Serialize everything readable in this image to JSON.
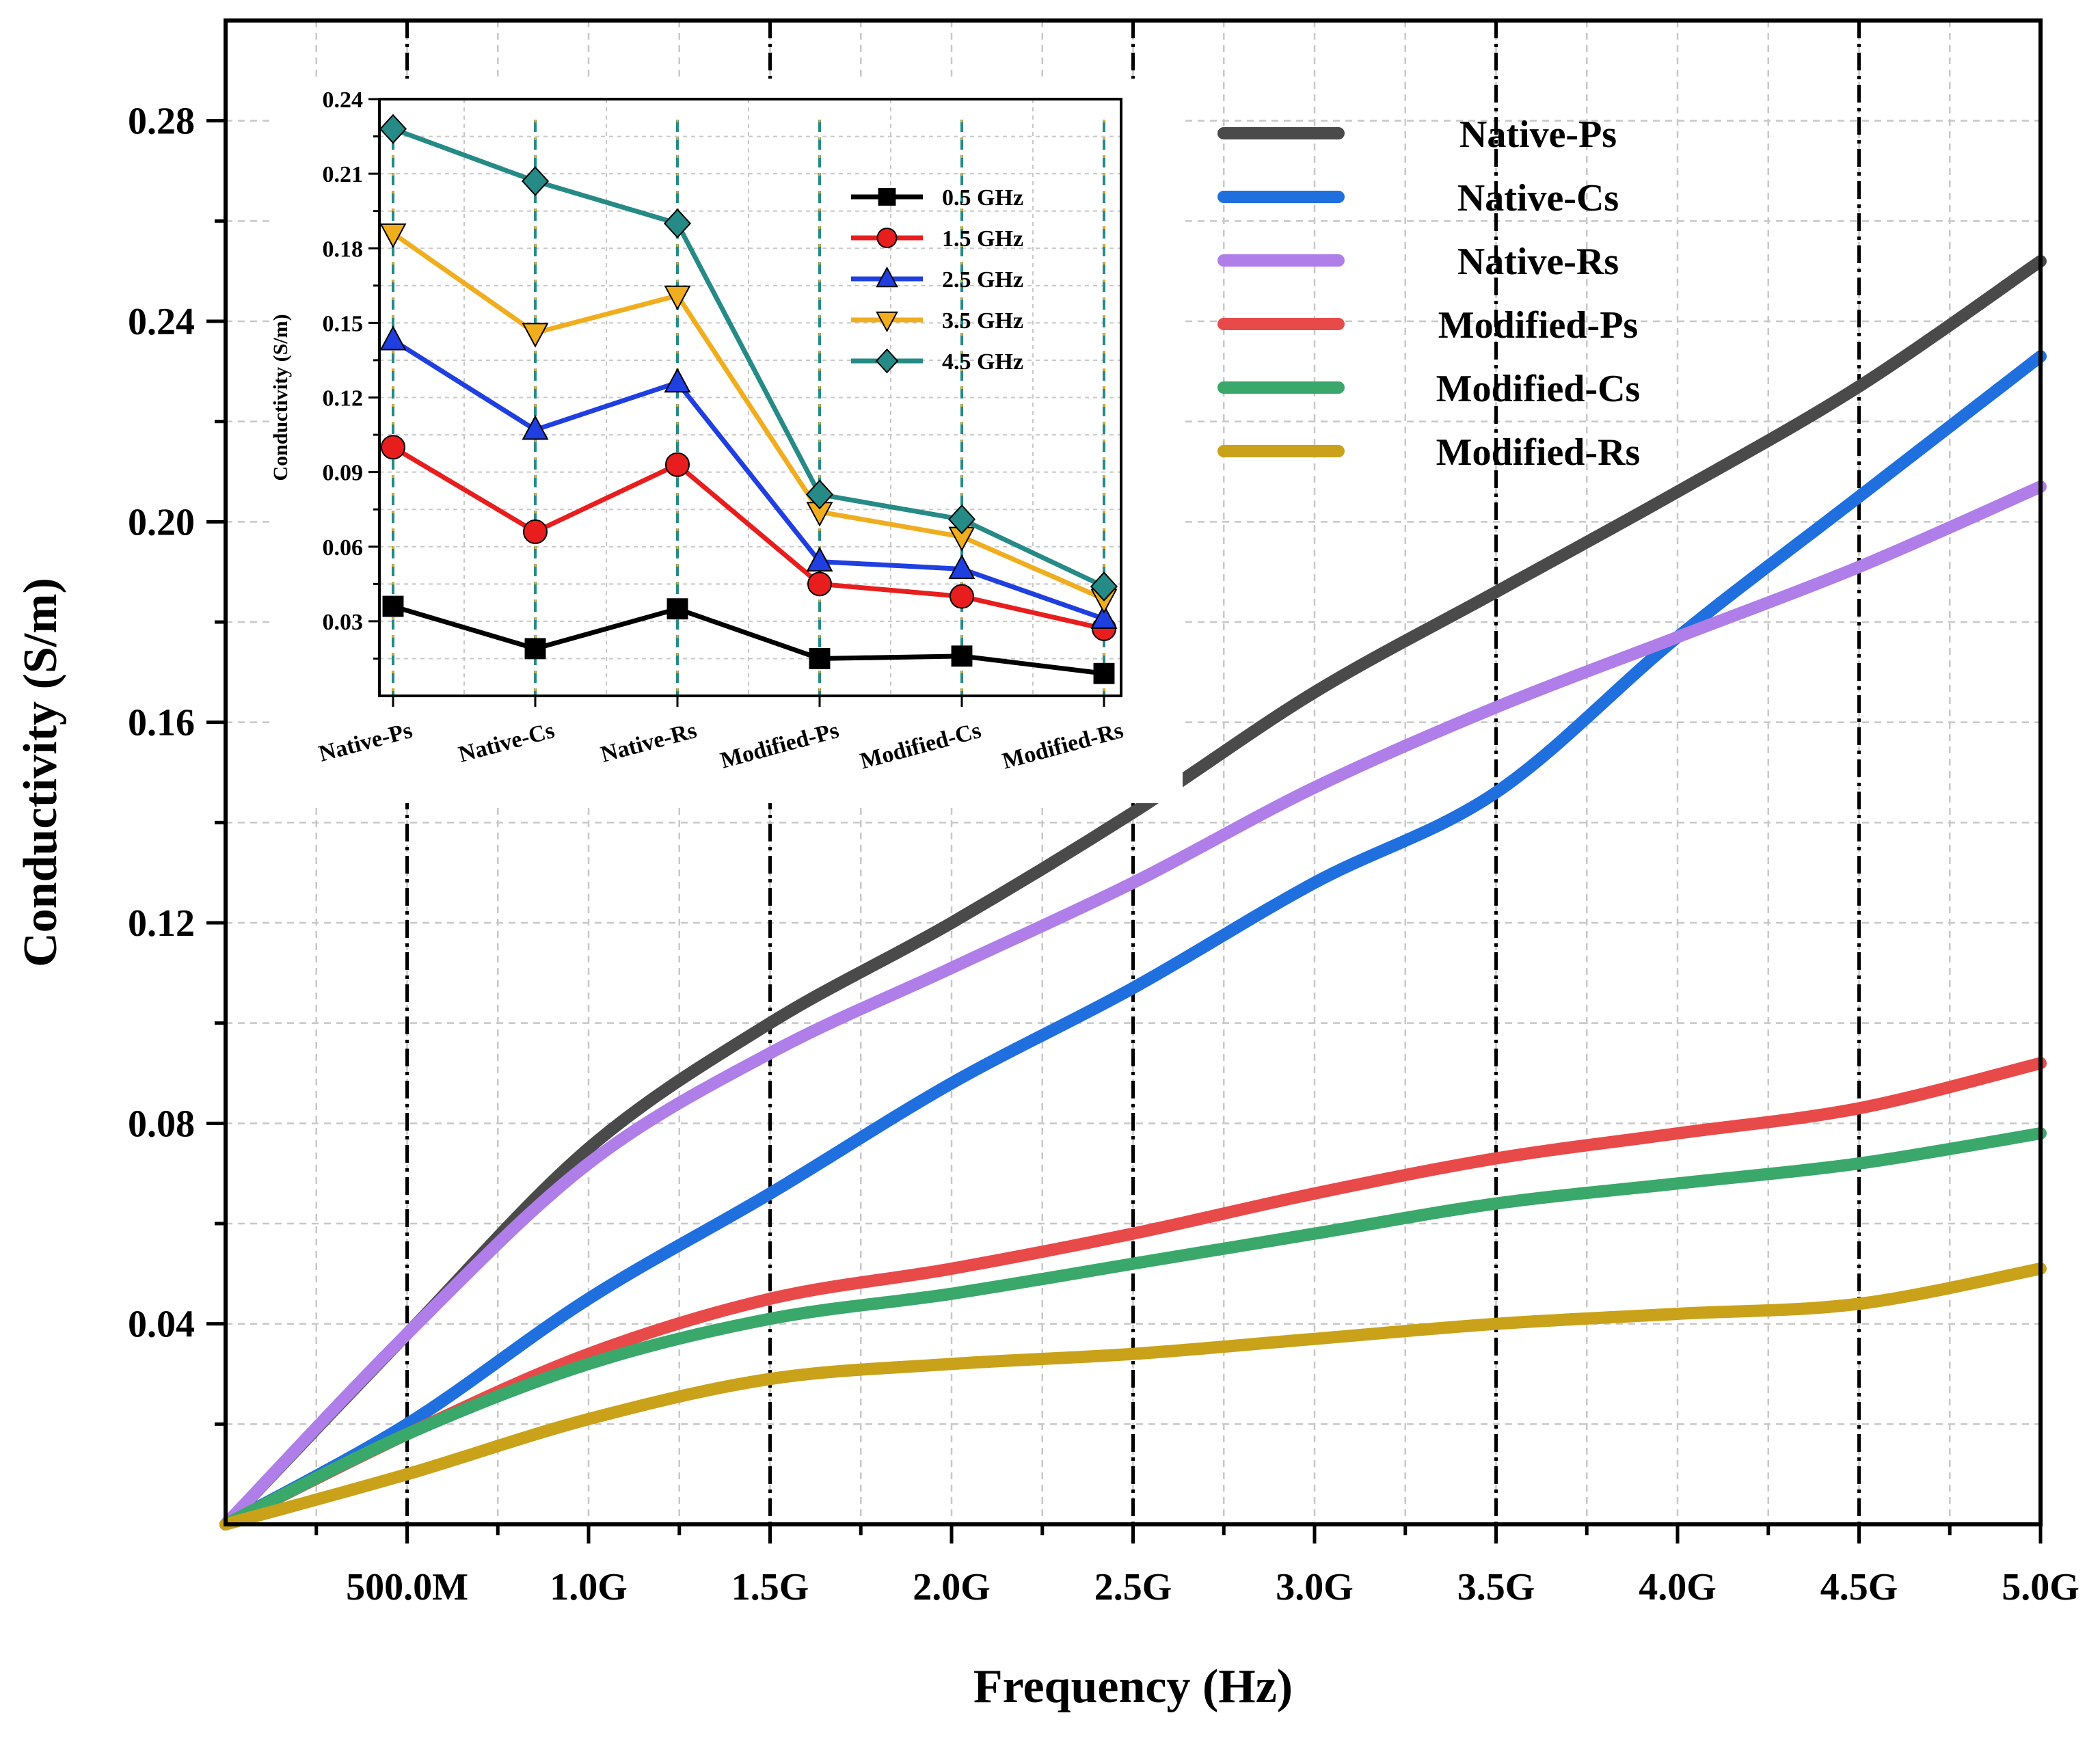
{
  "chart_data": [
    {
      "type": "line",
      "name": "main",
      "xlabel": "Frequency (Hz)",
      "ylabel": "Conductivity (S/m)",
      "xlim": [
        0.0,
        5.0
      ],
      "ylim": [
        0.0,
        0.3
      ],
      "x_unit": "GHz",
      "x_ticks": [
        {
          "value": 0.5,
          "label": "500.0M"
        },
        {
          "value": 1.0,
          "label": "1.0G"
        },
        {
          "value": 1.5,
          "label": "1.5G"
        },
        {
          "value": 2.0,
          "label": "2.0G"
        },
        {
          "value": 2.5,
          "label": "2.5G"
        },
        {
          "value": 3.0,
          "label": "3.0G"
        },
        {
          "value": 3.5,
          "label": "3.5G"
        },
        {
          "value": 4.0,
          "label": "4.0G"
        },
        {
          "value": 4.5,
          "label": "4.5G"
        },
        {
          "value": 5.0,
          "label": "5.0G"
        }
      ],
      "y_ticks": [
        {
          "value": 0.04,
          "label": "0.04"
        },
        {
          "value": 0.08,
          "label": "0.08"
        },
        {
          "value": 0.12,
          "label": "0.12"
        },
        {
          "value": 0.16,
          "label": "0.16"
        },
        {
          "value": 0.2,
          "label": "0.20"
        },
        {
          "value": 0.24,
          "label": "0.24"
        },
        {
          "value": 0.28,
          "label": "0.28"
        }
      ],
      "grid": true,
      "reference_lines_x": [
        0.5,
        1.5,
        2.5,
        3.5,
        4.5
      ],
      "legend_position": "top-right",
      "x": [
        0.0,
        0.5,
        1.0,
        1.5,
        2.0,
        2.5,
        3.0,
        3.5,
        4.0,
        4.5,
        5.0
      ],
      "series": [
        {
          "name": "Native-Ps",
          "color": "#4a4a4a",
          "values": [
            0.0,
            0.038,
            0.075,
            0.1,
            0.12,
            0.142,
            0.166,
            0.186,
            0.206,
            0.227,
            0.252
          ]
        },
        {
          "name": "Native-Cs",
          "color": "#1f6fde",
          "values": [
            0.0,
            0.02,
            0.045,
            0.066,
            0.088,
            0.107,
            0.128,
            0.146,
            0.177,
            0.205,
            0.233
          ]
        },
        {
          "name": "Native-Rs",
          "color": "#b07ee8",
          "values": [
            0.0,
            0.038,
            0.072,
            0.094,
            0.111,
            0.128,
            0.147,
            0.163,
            0.177,
            0.191,
            0.207
          ]
        },
        {
          "name": "Modified-Ps",
          "color": "#e84a4a",
          "values": [
            0.0,
            0.018,
            0.034,
            0.045,
            0.051,
            0.058,
            0.066,
            0.073,
            0.078,
            0.083,
            0.092
          ]
        },
        {
          "name": "Modified-Cs",
          "color": "#3aa86a",
          "values": [
            0.0,
            0.018,
            0.032,
            0.041,
            0.046,
            0.052,
            0.058,
            0.064,
            0.068,
            0.072,
            0.078
          ]
        },
        {
          "name": "Modified-Rs",
          "color": "#c9a21a",
          "values": [
            0.0,
            0.01,
            0.021,
            0.029,
            0.032,
            0.034,
            0.037,
            0.04,
            0.042,
            0.044,
            0.051
          ]
        }
      ]
    },
    {
      "type": "line",
      "name": "inset",
      "ylabel": "Conductivity (S/m)",
      "ylim": [
        0.0,
        0.24
      ],
      "y_ticks": [
        {
          "value": 0.03,
          "label": "0.03"
        },
        {
          "value": 0.06,
          "label": "0.06"
        },
        {
          "value": 0.09,
          "label": "0.09"
        },
        {
          "value": 0.12,
          "label": "0.12"
        },
        {
          "value": 0.15,
          "label": "0.15"
        },
        {
          "value": 0.18,
          "label": "0.18"
        },
        {
          "value": 0.21,
          "label": "0.21"
        },
        {
          "value": 0.24,
          "label": "0.24"
        }
      ],
      "categories": [
        "Native-Ps",
        "Native-Cs",
        "Native-Rs",
        "Modified-Ps",
        "Modified-Cs",
        "Modified-Rs"
      ],
      "legend_position": "top-right",
      "series": [
        {
          "name": "0.5 GHz",
          "color": "#000000",
          "marker": "square",
          "values": [
            0.036,
            0.019,
            0.035,
            0.015,
            0.016,
            0.009
          ]
        },
        {
          "name": "1.5 GHz",
          "color": "#e81e1e",
          "marker": "circle",
          "values": [
            0.1,
            0.066,
            0.093,
            0.045,
            0.04,
            0.027
          ]
        },
        {
          "name": "2.5 GHz",
          "color": "#1f3fe0",
          "marker": "triangle-up",
          "values": [
            0.143,
            0.107,
            0.126,
            0.054,
            0.051,
            0.031
          ]
        },
        {
          "name": "3.5 GHz",
          "color": "#f0ad1e",
          "marker": "triangle-down",
          "values": [
            0.186,
            0.146,
            0.161,
            0.074,
            0.064,
            0.039
          ]
        },
        {
          "name": "4.5 GHz",
          "color": "#268a86",
          "marker": "diamond",
          "values": [
            0.228,
            0.207,
            0.19,
            0.081,
            0.071,
            0.044
          ]
        }
      ]
    }
  ]
}
